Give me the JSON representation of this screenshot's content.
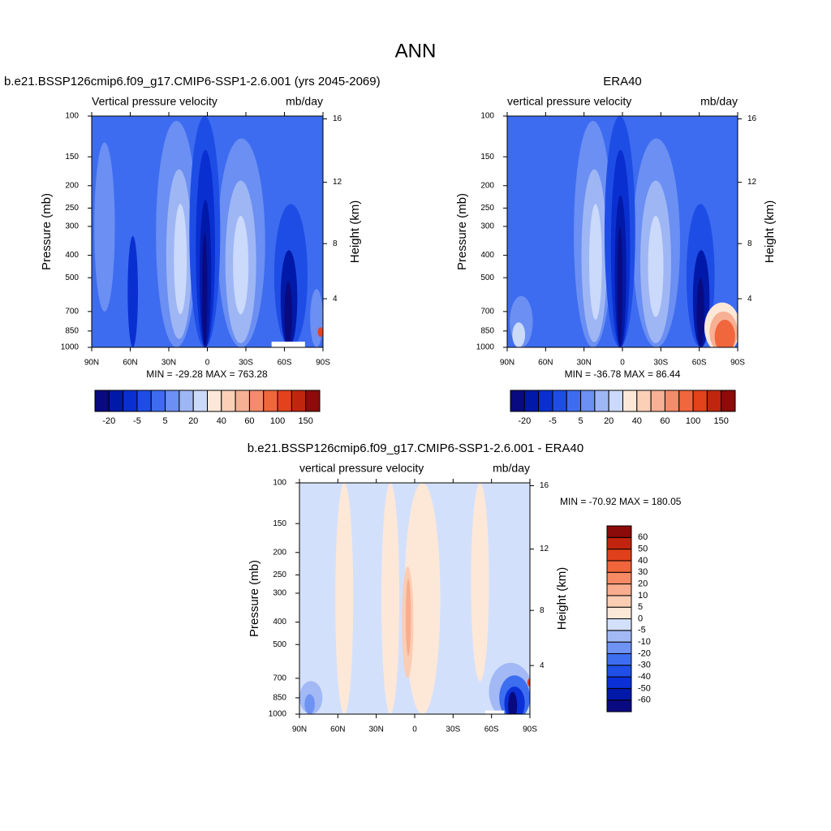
{
  "title": "ANN",
  "chart_data": [
    {
      "type": "contour",
      "title": "b.e21.BSSP126cmip6.f09_g17.CMIP6-SSP1-2.6.001 (yrs 2045-2069)",
      "left_string": "Vertical pressure velocity",
      "right_string": "mb/day",
      "ylabel": "Pressure (mb)",
      "y2label": "Height (km)",
      "stats": "MIN = -29.28  MAX = 763.28",
      "xlim": [
        90,
        -90
      ],
      "xticks": [
        {
          "value": 90,
          "label": "90N"
        },
        {
          "value": 60,
          "label": "60N"
        },
        {
          "value": 30,
          "label": "30N"
        },
        0,
        {
          "value": -30,
          "label": "30S"
        },
        {
          "value": -60,
          "label": "60S"
        },
        {
          "value": -90,
          "label": "90S"
        }
      ],
      "ylim": [
        1000,
        100
      ],
      "yscale": "log",
      "yticks": [
        100,
        150,
        200,
        250,
        300,
        400,
        500,
        700,
        850,
        1000
      ],
      "y2ticks": [
        4,
        8,
        12,
        16
      ],
      "colorbar": {
        "orientation": "horizontal",
        "colors": [
          "#0a0a80",
          "#0019a8",
          "#0a2fd1",
          "#1e4de6",
          "#3d6cf0",
          "#6b8ff2",
          "#9fb6f5",
          "#cbd9fa",
          "#fde8d8",
          "#fbd0b7",
          "#f7b094",
          "#f48b6a",
          "#f0663d",
          "#e4411d",
          "#c0260f",
          "#8c0c0a"
        ],
        "labels": [
          -20,
          -5,
          5,
          20,
          40,
          60,
          100,
          150
        ]
      }
    },
    {
      "type": "contour",
      "title": "ERA40",
      "left_string": "vertical pressure velocity",
      "right_string": "mb/day",
      "ylabel": "Pressure (mb)",
      "y2label": "Height (km)",
      "stats": "MIN = -36.78  MAX =  86.44",
      "xlim": [
        90,
        -90
      ],
      "xticks": [
        {
          "value": 90,
          "label": "90N"
        },
        {
          "value": 60,
          "label": "60N"
        },
        {
          "value": 30,
          "label": "30N"
        },
        0,
        {
          "value": -30,
          "label": "30S"
        },
        {
          "value": -60,
          "label": "60S"
        },
        {
          "value": -90,
          "label": "90S"
        }
      ],
      "ylim": [
        1000,
        100
      ],
      "yscale": "log",
      "yticks": [
        100,
        150,
        200,
        250,
        300,
        400,
        500,
        700,
        850,
        1000
      ],
      "y2ticks": [
        4,
        8,
        12,
        16
      ],
      "colorbar": {
        "orientation": "horizontal",
        "colors": [
          "#0a0a80",
          "#0019a8",
          "#0a2fd1",
          "#1e4de6",
          "#3d6cf0",
          "#6b8ff2",
          "#9fb6f5",
          "#cbd9fa",
          "#fde8d8",
          "#fbd0b7",
          "#f7b094",
          "#f48b6a",
          "#f0663d",
          "#e4411d",
          "#c0260f",
          "#8c0c0a"
        ],
        "labels": [
          -20,
          -5,
          5,
          20,
          40,
          60,
          100,
          150
        ]
      }
    },
    {
      "type": "contour",
      "title": "b.e21.BSSP126cmip6.f09_g17.CMIP6-SSP1-2.6.001 - ERA40",
      "left_string": "vertical pressure velocity",
      "right_string": "mb/day",
      "ylabel": "Pressure (mb)",
      "y2label": "Height (km)",
      "stats": "MIN = -70.92  MAX = 180.05",
      "xlim": [
        90,
        -90
      ],
      "xticks": [
        {
          "value": 90,
          "label": "90N"
        },
        {
          "value": 60,
          "label": "60N"
        },
        {
          "value": 30,
          "label": "30N"
        },
        0,
        {
          "value": -30,
          "label": "30S"
        },
        {
          "value": -60,
          "label": "60S"
        },
        {
          "value": -90,
          "label": "90S"
        }
      ],
      "ylim": [
        1000,
        100
      ],
      "yscale": "log",
      "yticks": [
        100,
        150,
        200,
        250,
        300,
        400,
        500,
        700,
        850,
        1000
      ],
      "y2ticks": [
        4,
        8,
        12,
        16
      ],
      "colorbar": {
        "orientation": "vertical",
        "colors": [
          "#0a0a80",
          "#0019a8",
          "#0a30d6",
          "#1f4fe6",
          "#3d6ef0",
          "#6f93f3",
          "#a2b9f6",
          "#d3e0fb",
          "#fde8d8",
          "#fbcdb3",
          "#f8ad8e",
          "#f58a64",
          "#f0653a",
          "#e0401a",
          "#c0240e",
          "#8b0a0a"
        ],
        "labels": [
          -60,
          -50,
          -40,
          -30,
          -20,
          -10,
          -5,
          0,
          5,
          10,
          20,
          30,
          40,
          50,
          60
        ]
      }
    }
  ]
}
